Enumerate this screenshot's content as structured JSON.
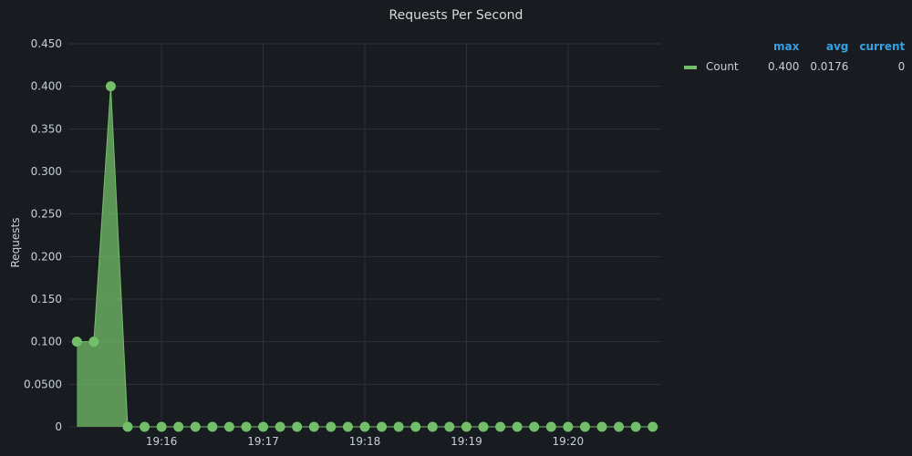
{
  "chart_data": {
    "type": "area",
    "title": "Requests Per Second",
    "ylabel": "Requests",
    "xlabel": "",
    "ylim": [
      0,
      0.45
    ],
    "y_ticks": [
      0,
      0.05,
      0.1,
      0.15,
      0.2,
      0.25,
      0.3,
      0.35,
      0.4,
      0.45
    ],
    "y_tick_labels": [
      "0",
      "0.0500",
      "0.100",
      "0.150",
      "0.200",
      "0.250",
      "0.300",
      "0.350",
      "0.400",
      "0.450"
    ],
    "x_range": [
      "19:15:05",
      "19:20:55"
    ],
    "x_ticks": [
      "19:16",
      "19:17",
      "19:18",
      "19:19",
      "19:20"
    ],
    "grid": true,
    "legend_position": "right",
    "series": [
      {
        "name": "Count",
        "color": "#73bf69",
        "x": [
          "19:15:10",
          "19:15:20",
          "19:15:30",
          "19:15:40",
          "19:15:50",
          "19:16:00",
          "19:16:10",
          "19:16:20",
          "19:16:30",
          "19:16:40",
          "19:16:50",
          "19:17:00",
          "19:17:10",
          "19:17:20",
          "19:17:30",
          "19:17:40",
          "19:17:50",
          "19:18:00",
          "19:18:10",
          "19:18:20",
          "19:18:30",
          "19:18:40",
          "19:18:50",
          "19:19:00",
          "19:19:10",
          "19:19:20",
          "19:19:30",
          "19:19:40",
          "19:19:50",
          "19:20:00",
          "19:20:10",
          "19:20:20",
          "19:20:30",
          "19:20:40",
          "19:20:50"
        ],
        "values": [
          0.1,
          0.1,
          0.4,
          0,
          0,
          0,
          0,
          0,
          0,
          0,
          0,
          0,
          0,
          0,
          0,
          0,
          0,
          0,
          0,
          0,
          0,
          0,
          0,
          0,
          0,
          0,
          0,
          0,
          0,
          0,
          0,
          0,
          0,
          0,
          0
        ]
      }
    ]
  },
  "legend": {
    "headers": {
      "max": "max",
      "avg": "avg",
      "current": "current"
    },
    "rows": [
      {
        "name": "Count",
        "max": "0.400",
        "avg": "0.0176",
        "current": "0"
      }
    ]
  }
}
